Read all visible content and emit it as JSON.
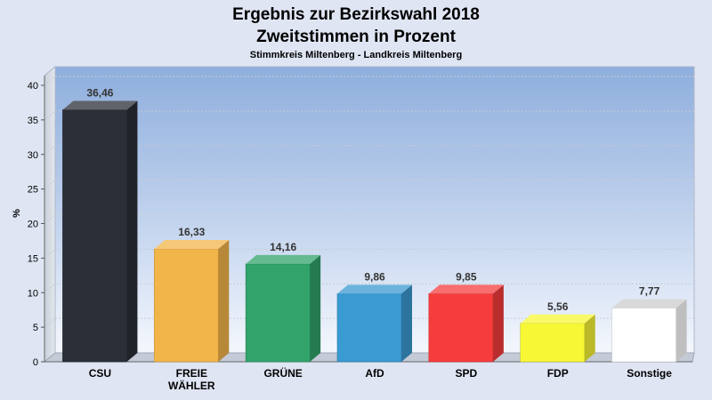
{
  "chart_data": {
    "type": "bar",
    "title": "Ergebnis zur Bezirkswahl 2018",
    "subtitle": "Zweitstimmen in Prozent",
    "caption": "Stimmkreis Miltenberg - Landkreis Miltenberg",
    "xlabel": "",
    "ylabel": "%",
    "ylim": [
      0,
      40
    ],
    "yticks": [
      0,
      5,
      10,
      15,
      20,
      25,
      30,
      35,
      40
    ],
    "categories": [
      "CSU",
      "FREIE WÄHLER",
      "GRÜNE",
      "AfD",
      "SPD",
      "FDP",
      "Sonstige"
    ],
    "category_lines": [
      [
        "CSU"
      ],
      [
        "FREIE",
        "WÄHLER"
      ],
      [
        "GRÜNE"
      ],
      [
        "AfD"
      ],
      [
        "SPD"
      ],
      [
        "FDP"
      ],
      [
        "Sonstige"
      ]
    ],
    "values": [
      36.46,
      16.33,
      14.16,
      9.86,
      9.85,
      5.56,
      7.77
    ],
    "value_labels": [
      "36,46",
      "16,33",
      "14,16",
      "9,86",
      "9,85",
      "5,56",
      "7,77"
    ],
    "colors": [
      "#2b2f38",
      "#f2b54a",
      "#31a36b",
      "#3a9ad2",
      "#f63c3c",
      "#f7f736",
      "#ffffff"
    ],
    "grid": true,
    "legend": "none"
  }
}
